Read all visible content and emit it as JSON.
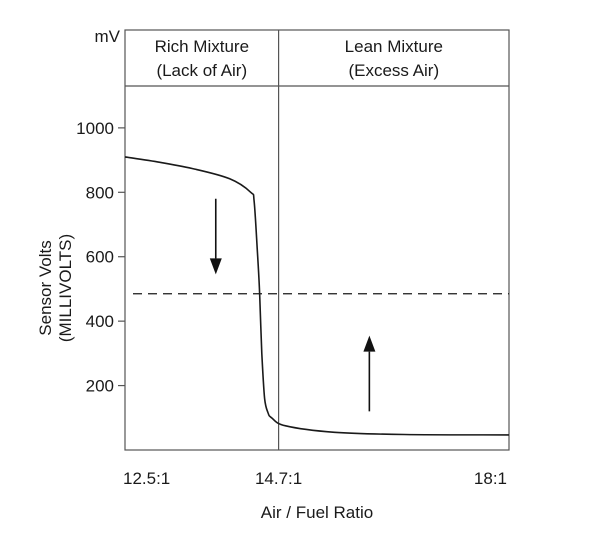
{
  "chart_data": {
    "type": "line",
    "y_unit": "mV",
    "ylabel_line1": "Sensor Volts",
    "ylabel_line2": "(MILLIVOLTS)",
    "xlabel": "Air / Fuel Ratio",
    "x_ticks": [
      {
        "value": 12.5,
        "label": "12.5:1"
      },
      {
        "value": 14.7,
        "label": "14.7:1"
      },
      {
        "value": 18.0,
        "label": "18:1"
      }
    ],
    "y_ticks": [
      200,
      400,
      600,
      800,
      1000
    ],
    "xlim": [
      12.5,
      18.0
    ],
    "ylim": [
      0,
      1130
    ],
    "regions": [
      {
        "line1": "Rich Mixture",
        "line2": "(Lack of Air)",
        "x_range": [
          12.5,
          14.7
        ]
      },
      {
        "line1": "Lean Mixture",
        "line2": "(Excess Air)",
        "x_range": [
          14.7,
          18.0
        ]
      }
    ],
    "divider_x": 14.7,
    "threshold_mV": 485,
    "series": [
      {
        "x": [
          12.5,
          13.0,
          13.5,
          14.0,
          14.3,
          14.35,
          14.4,
          14.43,
          14.46,
          14.5,
          14.55,
          14.6,
          14.8,
          15.5,
          16.5,
          18.0
        ],
        "y": [
          910,
          893,
          872,
          842,
          800,
          770,
          600,
          480,
          300,
          160,
          115,
          100,
          75,
          55,
          48,
          47
        ]
      }
    ],
    "arrows": [
      {
        "direction": "down",
        "x": 13.8,
        "from_y": 780,
        "to_y": 545
      },
      {
        "direction": "up",
        "x": 16.0,
        "from_y": 120,
        "to_y": 355
      }
    ],
    "grid": false,
    "colors": {
      "line": "#1a1a1a",
      "frame": "#555555",
      "text": "#1a1a1a"
    }
  }
}
